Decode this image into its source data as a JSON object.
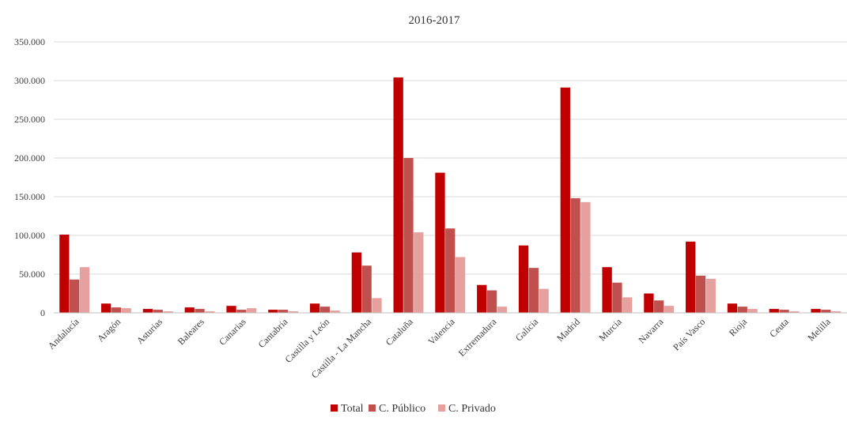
{
  "chart_data": {
    "type": "bar",
    "title": "2016-2017",
    "xlabel": "",
    "ylabel": "",
    "ylim": [
      0,
      350000
    ],
    "yticks": [
      0,
      50000,
      100000,
      150000,
      200000,
      250000,
      300000,
      350000
    ],
    "ytick_labels": [
      "0",
      "50.000",
      "100.000",
      "150.000",
      "200.000",
      "250.000",
      "300.000",
      "350.000"
    ],
    "grid": true,
    "legend_position": "bottom",
    "categories": [
      "Andalucía",
      "Aragón",
      "Asturias",
      "Baleares",
      "Canarias",
      "Cantabria",
      "Castilla y León",
      "Castilla - La Mancha",
      "Cataluña",
      "Valencia",
      "Extremadura",
      "Galicia",
      "Madrid",
      "Murcia",
      "Navarra",
      "País Vasco",
      "Rioja",
      "Ceuta",
      "Melilla"
    ],
    "series": [
      {
        "name": "Total",
        "color": "#c00000",
        "values": [
          101000,
          12000,
          5000,
          7000,
          9000,
          4000,
          12000,
          78000,
          304000,
          181000,
          36000,
          87000,
          291000,
          59000,
          25000,
          92000,
          12000,
          5000,
          5000
        ]
      },
      {
        "name": "C. Público",
        "color": "#c0504d",
        "values": [
          43000,
          7000,
          4000,
          5000,
          4000,
          4000,
          8000,
          61000,
          200000,
          109000,
          29000,
          58000,
          148000,
          39000,
          16000,
          48000,
          8000,
          4000,
          4000
        ]
      },
      {
        "name": "C. Privado",
        "color": "#e6a19e",
        "values": [
          59000,
          6000,
          2000,
          2000,
          6000,
          2000,
          3000,
          19000,
          104000,
          72000,
          8000,
          31000,
          143000,
          20000,
          9000,
          44000,
          5000,
          2000,
          2000
        ]
      }
    ]
  }
}
